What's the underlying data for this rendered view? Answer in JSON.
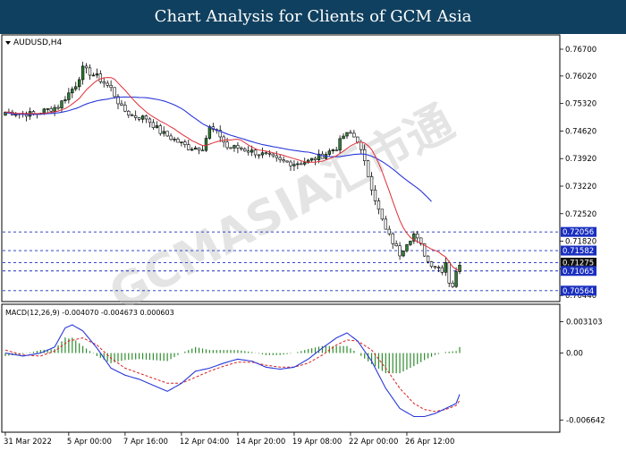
{
  "banner": {
    "title": "Chart Analysis for Clients of GCM Asia"
  },
  "watermark": "GCMASIA汇市通",
  "chart_data": {
    "type": "candlestick",
    "symbol_label": "AUDUSD,H4",
    "main_yaxis": {
      "ylim": [
        0.704,
        0.7695
      ],
      "ticks": [
        "0.76700",
        "0.76020",
        "0.75320",
        "0.74620",
        "0.73920",
        "0.73220",
        "0.72520",
        "0.71820",
        "0.71120",
        "0.70440"
      ]
    },
    "price_tags": [
      {
        "value": "0.72056",
        "y": 0.72056,
        "highlight": false
      },
      {
        "value": "0.71582",
        "y": 0.71582,
        "highlight": false
      },
      {
        "value": "0.71275",
        "y": 0.71275,
        "highlight": true
      },
      {
        "value": "0.71065",
        "y": 0.71065,
        "highlight": false
      },
      {
        "value": "0.70564",
        "y": 0.70564,
        "highlight": false
      }
    ],
    "ma_fast_color": "#e0303a",
    "ma_slow_color": "#2a38d8",
    "up_color": "#2e7d32",
    "down_color": "#1a1a1a",
    "close_path": [
      [
        0,
        0.751
      ],
      [
        8,
        0.7505
      ],
      [
        15,
        0.7525
      ],
      [
        20,
        0.758
      ],
      [
        22,
        0.762
      ],
      [
        26,
        0.76
      ],
      [
        30,
        0.757
      ],
      [
        33,
        0.752
      ],
      [
        36,
        0.75
      ],
      [
        40,
        0.7495
      ],
      [
        44,
        0.746
      ],
      [
        48,
        0.744
      ],
      [
        52,
        0.742
      ],
      [
        56,
        0.742
      ],
      [
        58,
        0.747
      ],
      [
        61,
        0.745
      ],
      [
        63,
        0.742
      ],
      [
        66,
        0.742
      ],
      [
        70,
        0.741
      ],
      [
        74,
        0.74
      ],
      [
        78,
        0.7385
      ],
      [
        82,
        0.738
      ],
      [
        86,
        0.7385
      ],
      [
        90,
        0.74
      ],
      [
        94,
        0.742
      ],
      [
        96,
        0.745
      ],
      [
        98,
        0.7455
      ],
      [
        100,
        0.744
      ],
      [
        102,
        0.738
      ],
      [
        104,
        0.732
      ],
      [
        106,
        0.726
      ],
      [
        108,
        0.721
      ],
      [
        110,
        0.718
      ],
      [
        112,
        0.715
      ],
      [
        114,
        0.718
      ],
      [
        116,
        0.72
      ],
      [
        118,
        0.717
      ],
      [
        120,
        0.713
      ],
      [
        122,
        0.712
      ],
      [
        124,
        0.711
      ],
      [
        125,
        0.713
      ],
      [
        126,
        0.708
      ],
      [
        127,
        0.707
      ],
      [
        128,
        0.71
      ],
      [
        129,
        0.7127
      ]
    ],
    "macd": {
      "label": "MACD(12,26,9) -0.004070 -0.004673 0.000603",
      "ylim": [
        -0.0075,
        0.0036
      ],
      "ticks": [
        "0.003103",
        "0.00",
        "-0.006642"
      ],
      "hist_color": "#2e8b2e",
      "macd_color": "#2a38d8",
      "signal_color": "#d82020",
      "macd_path": [
        [
          0,
          0.0
        ],
        [
          5,
          -0.0003
        ],
        [
          10,
          0.0
        ],
        [
          14,
          0.0006
        ],
        [
          17,
          0.0025
        ],
        [
          19,
          0.0028
        ],
        [
          22,
          0.0022
        ],
        [
          26,
          0.0005
        ],
        [
          30,
          -0.0015
        ],
        [
          34,
          -0.0022
        ],
        [
          38,
          -0.0026
        ],
        [
          42,
          -0.0032
        ],
        [
          46,
          -0.0038
        ],
        [
          50,
          -0.003
        ],
        [
          54,
          -0.0018
        ],
        [
          58,
          -0.0015
        ],
        [
          62,
          -0.001
        ],
        [
          66,
          -0.0006
        ],
        [
          70,
          -0.0008
        ],
        [
          74,
          -0.0014
        ],
        [
          78,
          -0.0016
        ],
        [
          82,
          -0.0014
        ],
        [
          86,
          -0.0006
        ],
        [
          90,
          0.0005
        ],
        [
          94,
          0.0015
        ],
        [
          97,
          0.002
        ],
        [
          100,
          0.0012
        ],
        [
          104,
          -0.0008
        ],
        [
          108,
          -0.0035
        ],
        [
          112,
          -0.0055
        ],
        [
          116,
          -0.0063
        ],
        [
          119,
          -0.0063
        ],
        [
          122,
          -0.006
        ],
        [
          125,
          -0.0055
        ],
        [
          128,
          -0.005
        ],
        [
          129,
          -0.0041
        ]
      ],
      "signal_path": [
        [
          0,
          0.0003
        ],
        [
          5,
          -0.0002
        ],
        [
          10,
          -0.0003
        ],
        [
          14,
          0.0002
        ],
        [
          18,
          0.0012
        ],
        [
          22,
          0.0015
        ],
        [
          26,
          0.0008
        ],
        [
          30,
          -0.0005
        ],
        [
          34,
          -0.0015
        ],
        [
          38,
          -0.002
        ],
        [
          42,
          -0.0025
        ],
        [
          46,
          -0.003
        ],
        [
          50,
          -0.003
        ],
        [
          54,
          -0.0024
        ],
        [
          58,
          -0.0018
        ],
        [
          62,
          -0.0013
        ],
        [
          66,
          -0.0009
        ],
        [
          70,
          -0.0009
        ],
        [
          74,
          -0.0012
        ],
        [
          78,
          -0.0014
        ],
        [
          82,
          -0.0014
        ],
        [
          86,
          -0.001
        ],
        [
          90,
          -0.0002
        ],
        [
          94,
          0.0008
        ],
        [
          97,
          0.0013
        ],
        [
          100,
          0.0012
        ],
        [
          104,
          0.0003
        ],
        [
          108,
          -0.0015
        ],
        [
          112,
          -0.0035
        ],
        [
          116,
          -0.005
        ],
        [
          119,
          -0.0056
        ],
        [
          122,
          -0.0058
        ],
        [
          125,
          -0.0056
        ],
        [
          128,
          -0.0052
        ],
        [
          129,
          -0.0047
        ]
      ]
    },
    "x_labels": [
      {
        "text": "31 Mar 2022",
        "bar": 0
      },
      {
        "text": "5 Apr 00:00",
        "bar": 18
      },
      {
        "text": "7 Apr 16:00",
        "bar": 34
      },
      {
        "text": "12 Apr 04:00",
        "bar": 50
      },
      {
        "text": "14 Apr 20:00",
        "bar": 66
      },
      {
        "text": "19 Apr 08:00",
        "bar": 82
      },
      {
        "text": "22 Apr 00:00",
        "bar": 98
      },
      {
        "text": "26 Apr 12:00",
        "bar": 114
      }
    ],
    "bar_count": 130
  }
}
